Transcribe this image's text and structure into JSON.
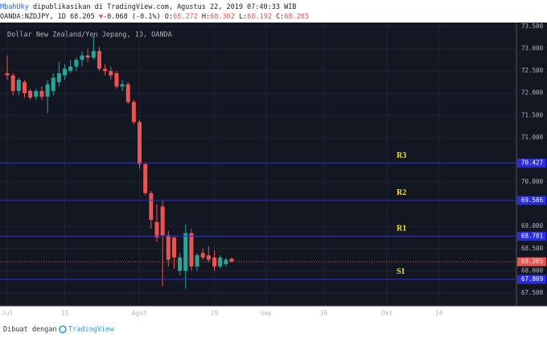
{
  "header": {
    "author": "MbahUky",
    "published": "dipublikasikan di TradingView.com, Agustus 22, 2019 07:40:33 WIB",
    "symbol": "OANDA:NZDJPY, 1D",
    "arrow": "▼",
    "change": "-0.068",
    "change_pct": "(-0.1%)",
    "ohlc_labels": [
      "O:",
      "H:",
      "L:",
      "C:"
    ]
  },
  "footer": {
    "made_with": "Dibuat dengan",
    "brand": "TradingView"
  },
  "chart_data": {
    "type": "candlestick",
    "title": "Dollar New Zealand/Yen Jepang, 1D, OANDA",
    "open": [
      72.45,
      72.4,
      72.05,
      72.25,
      72.05,
      71.92,
      72.05,
      71.92,
      72.05,
      72.25,
      72.4,
      72.5,
      72.6,
      72.75,
      72.85,
      72.8,
      72.95,
      72.55,
      72.5,
      72.45,
      72.15,
      72.2,
      71.8,
      71.35,
      70.4,
      69.75,
      69.1,
      69.45,
      68.8,
      68.75,
      68.0,
      68.0,
      68.85,
      68.1,
      68.4,
      68.35,
      68.3,
      68.1,
      68.15,
      68.272
    ],
    "high": [
      72.85,
      72.45,
      72.35,
      72.3,
      72.1,
      72.1,
      72.15,
      72.3,
      72.45,
      72.7,
      72.65,
      72.75,
      72.8,
      72.95,
      73.0,
      73.3,
      73.05,
      72.65,
      72.6,
      72.5,
      72.3,
      72.25,
      71.85,
      71.4,
      70.45,
      69.8,
      69.5,
      69.6,
      68.9,
      68.8,
      68.4,
      69.05,
      68.95,
      68.4,
      68.5,
      68.55,
      68.45,
      68.35,
      68.3,
      68.302
    ],
    "low": [
      72.3,
      71.95,
      71.95,
      71.9,
      71.85,
      71.85,
      71.85,
      71.55,
      71.95,
      72.15,
      72.3,
      72.45,
      72.5,
      72.6,
      72.7,
      72.75,
      72.5,
      72.4,
      72.3,
      72.1,
      72.05,
      71.75,
      71.3,
      70.3,
      69.7,
      68.95,
      68.65,
      67.65,
      68.1,
      68.05,
      67.9,
      67.6,
      68.0,
      68.0,
      68.25,
      68.2,
      68.0,
      68.05,
      68.1,
      68.192
    ],
    "close": [
      72.4,
      72.05,
      72.3,
      72.0,
      71.9,
      72.05,
      71.92,
      72.2,
      72.35,
      72.45,
      72.55,
      72.6,
      72.75,
      72.85,
      72.8,
      72.95,
      72.55,
      72.5,
      72.4,
      72.15,
      72.2,
      71.8,
      71.35,
      70.4,
      69.75,
      69.15,
      68.75,
      68.8,
      68.25,
      68.3,
      68.3,
      68.85,
      68.1,
      68.35,
      68.3,
      68.25,
      68.1,
      68.3,
      68.25,
      68.205
    ],
    "up_color": "#26a69a",
    "down_color": "#ef5350",
    "ylim": [
      67.21,
      73.59
    ],
    "xlim": [
      -1.26,
      88.5
    ],
    "yticks": [
      {
        "value": 73.5,
        "label": "73.500"
      },
      {
        "value": 73.0,
        "label": "73.000"
      },
      {
        "value": 72.5,
        "label": "72.500"
      },
      {
        "value": 72.0,
        "label": "72.000"
      },
      {
        "value": 71.5,
        "label": "71.500"
      },
      {
        "value": 71.0,
        "label": "71.000"
      },
      {
        "value": 70.0,
        "label": "70.000"
      },
      {
        "value": 69.0,
        "label": "69.000"
      },
      {
        "value": 68.5,
        "label": "68.500"
      },
      {
        "value": 68.0,
        "label": "68.000"
      },
      {
        "value": 67.5,
        "label": "67.500"
      }
    ],
    "xticks": [
      {
        "value": 0,
        "label": "Jul"
      },
      {
        "value": 10,
        "label": "15"
      },
      {
        "value": 23,
        "label": "Agst"
      },
      {
        "value": 36,
        "label": "19"
      },
      {
        "value": 45,
        "label": "Sep"
      },
      {
        "value": 55,
        "label": "16"
      },
      {
        "value": 66,
        "label": "Okt"
      },
      {
        "value": 75,
        "label": "14"
      }
    ],
    "levels": [
      {
        "name": "R3",
        "value": 70.427
      },
      {
        "name": "R2",
        "value": 69.586
      },
      {
        "name": "R1",
        "value": 68.781
      },
      {
        "name": "S1",
        "value": 67.809
      }
    ],
    "level_color": "#2a2ee0",
    "label_color": "#f5e020",
    "grid": true
  }
}
